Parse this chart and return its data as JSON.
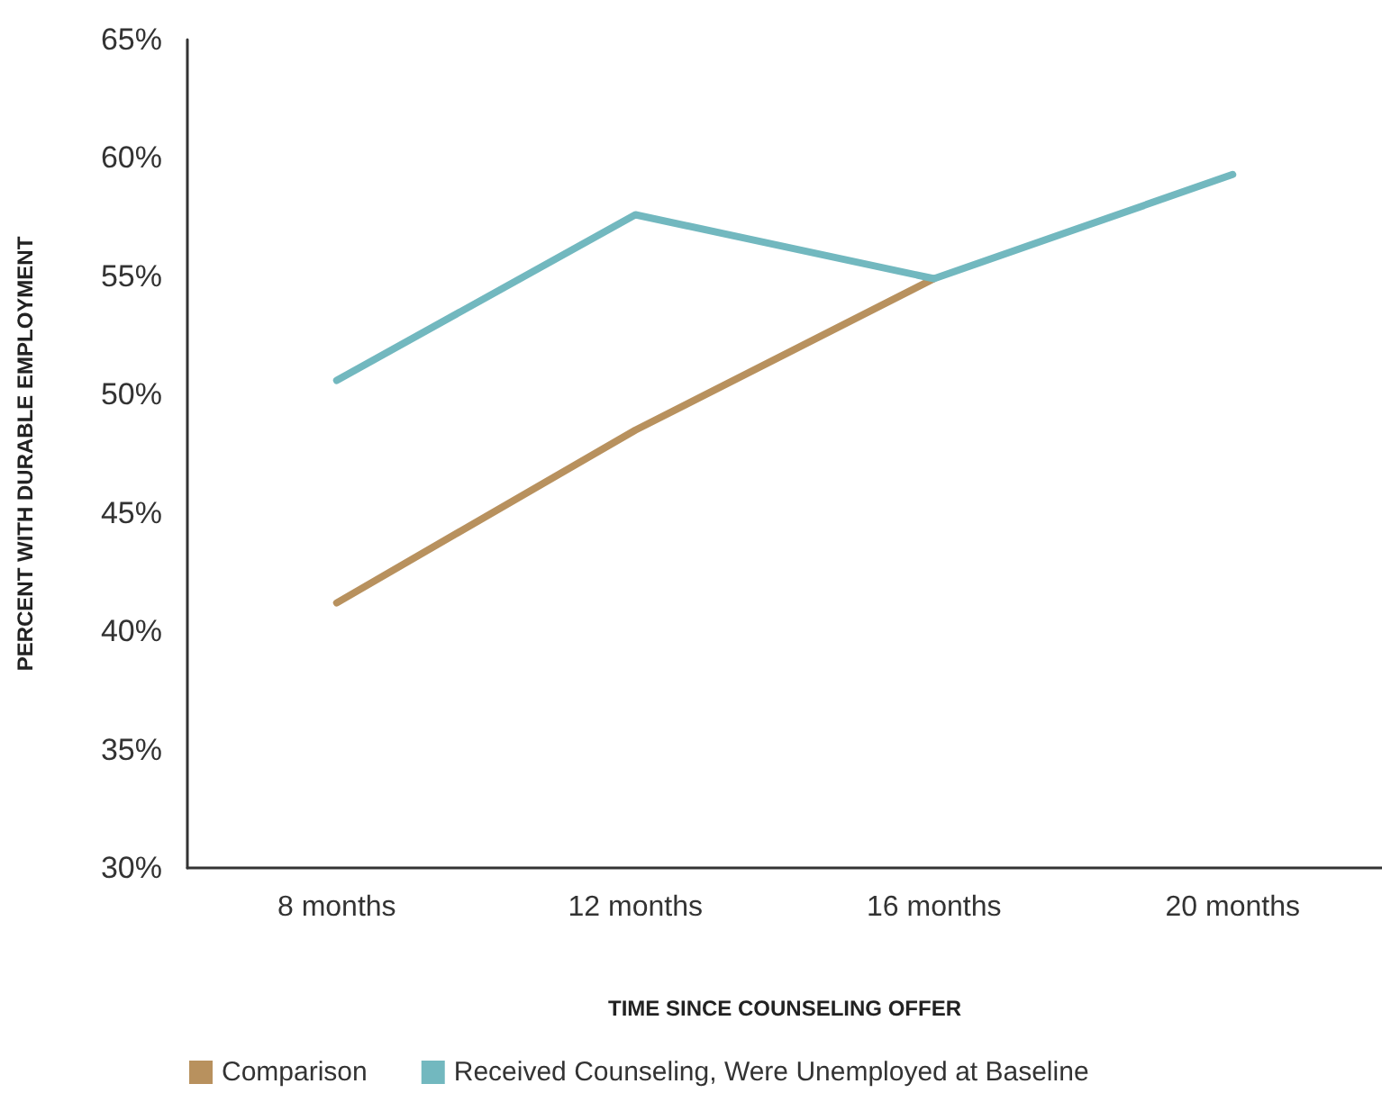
{
  "chart_data": {
    "type": "line",
    "xlabel": "TIME SINCE COUNSELING OFFER",
    "ylabel": "PERCENT WITH DURABLE EMPLOYMENT",
    "categories": [
      "8 months",
      "12 months",
      "16 months",
      "20 months"
    ],
    "series": [
      {
        "name": "Comparison",
        "color": "#b8915e",
        "values": [
          41.2,
          48.5,
          54.9,
          null
        ]
      },
      {
        "name": "Received Counseling, Were Unemployed at Baseline",
        "color": "#72b8bf",
        "values": [
          50.6,
          57.6,
          54.9,
          59.3
        ]
      }
    ],
    "ylim": [
      30,
      65
    ],
    "yticks": [
      {
        "value": 30,
        "label": "30%"
      },
      {
        "value": 35,
        "label": "35%"
      },
      {
        "value": 40,
        "label": "40%"
      },
      {
        "value": 45,
        "label": "45%"
      },
      {
        "value": 50,
        "label": "50%"
      },
      {
        "value": 55,
        "label": "55%"
      },
      {
        "value": 60,
        "label": "60%"
      },
      {
        "value": 65,
        "label": "65%"
      }
    ],
    "grid": false,
    "legend": "bottom left",
    "marker": "none",
    "line_style": "solid"
  }
}
